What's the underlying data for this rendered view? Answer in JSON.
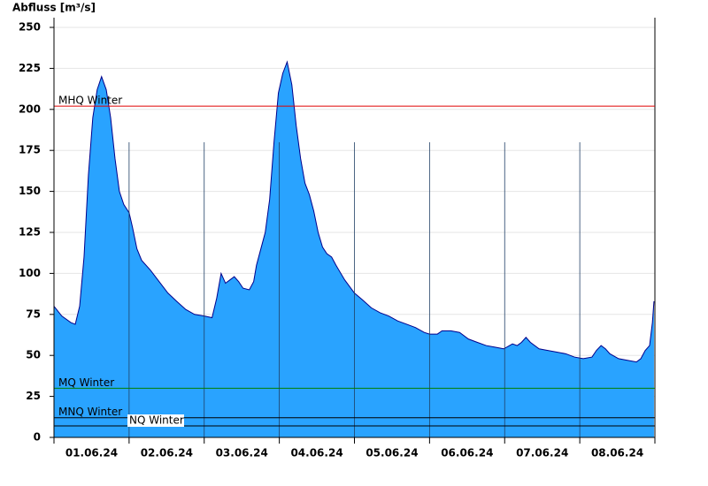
{
  "chart_data": {
    "type": "area",
    "y_label": "Abfluss [m³/s]",
    "x": [
      0,
      2.5,
      5.4,
      6.8,
      8.2,
      9.6,
      11.0,
      12.4,
      13.8,
      15.2,
      16.7,
      18.1,
      19.5,
      20.9,
      22.3,
      24,
      25.1,
      26.5,
      28.0,
      30.8,
      33.6,
      36.4,
      39.2,
      42.1,
      44.9,
      48,
      50.5,
      52.0,
      53.4,
      54.8,
      56.2,
      57.6,
      59.0,
      60.4,
      62.4,
      63.8,
      64.7,
      66.1,
      67.5,
      68.9,
      70.3,
      71.7,
      73.1,
      74.5,
      76.0,
      77.4,
      78.8,
      80.2,
      81.6,
      83.0,
      84.4,
      85.8,
      87.2,
      88.7,
      90.1,
      92.9,
      96,
      98.5,
      101.4,
      104.2,
      107.0,
      109.8,
      112.7,
      115.5,
      118.3,
      120,
      122.5,
      124.0,
      126.8,
      129.6,
      132.4,
      135.2,
      138.1,
      140.9,
      143.7,
      146.5,
      148.0,
      149.4,
      150.8,
      152.2,
      155.0,
      157.8,
      160.7,
      163.5,
      166.3,
      169.1,
      171.9,
      173.3,
      174.8,
      176.2,
      177.6,
      180.4,
      183.2,
      186.1,
      187.5,
      188.9,
      190.3,
      191.2,
      191.7
    ],
    "series": [
      {
        "name": "Abfluss",
        "color": "#29a3ff",
        "line_color": "#00008b",
        "values": [
          80,
          74,
          70,
          69,
          80,
          110,
          160,
          195,
          212,
          220,
          212,
          195,
          170,
          150,
          142,
          137,
          128,
          115,
          108,
          102,
          95,
          88,
          83,
          78,
          75,
          74,
          73,
          85,
          100,
          94,
          96,
          98,
          95,
          91,
          90,
          95,
          105,
          115,
          125,
          145,
          180,
          210,
          222,
          229,
          215,
          190,
          170,
          155,
          148,
          138,
          125,
          116,
          112,
          110,
          105,
          96,
          88,
          84,
          79,
          76,
          74,
          71,
          69,
          67,
          64,
          63,
          63,
          65,
          65,
          64,
          60,
          58,
          56,
          55,
          54,
          57,
          56,
          58,
          61,
          58,
          54,
          53,
          52,
          51,
          49,
          48,
          49,
          53,
          56,
          54,
          51,
          48,
          47,
          46,
          48,
          53,
          56,
          70,
          83
        ]
      }
    ],
    "reference_lines": [
      {
        "label": "MHQ Winter",
        "value": 202,
        "color": "#e00000"
      },
      {
        "label": "MQ Winter",
        "value": 30,
        "color": "#008000"
      },
      {
        "label": "MNQ Winter",
        "value": 12,
        "color": "#000000"
      },
      {
        "label": "NQ Winter",
        "value": 7,
        "color": "#000000"
      }
    ],
    "xlim": [
      0,
      192
    ],
    "xticks": [
      {
        "value": 12,
        "label": "01.06.24"
      },
      {
        "value": 36,
        "label": "02.06.24"
      },
      {
        "value": 60,
        "label": "03.06.24"
      },
      {
        "value": 84,
        "label": "04.06.24"
      },
      {
        "value": 108,
        "label": "05.06.24"
      },
      {
        "value": 132,
        "label": "06.06.24"
      },
      {
        "value": 156,
        "label": "07.06.24"
      },
      {
        "value": 180,
        "label": "08.06.24"
      }
    ],
    "day_lines": [
      0,
      24,
      48,
      72,
      96,
      120,
      144,
      168,
      192
    ],
    "ylim": [
      0,
      250
    ],
    "yticks": [
      0,
      25,
      50,
      75,
      100,
      125,
      150,
      175,
      200,
      225,
      250
    ],
    "grid": true
  }
}
